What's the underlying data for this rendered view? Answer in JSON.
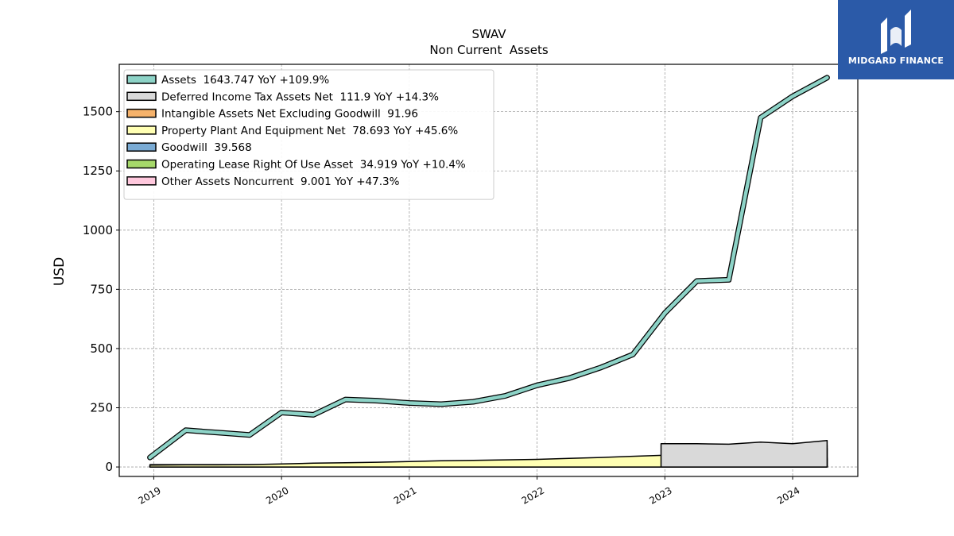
{
  "chart_data": {
    "type": "area",
    "title": "SWAV",
    "subtitle": "Non Current  Assets",
    "ylabel": "USD",
    "xlabel": "",
    "ylim": [
      -40,
      1700
    ],
    "xlim": [
      2018.73,
      2024.51
    ],
    "grid": true,
    "legend_position": "top-left",
    "yticks": [
      0,
      250,
      500,
      750,
      1000,
      1250,
      1500
    ],
    "ytick_labels": [
      "0",
      "250",
      "500",
      "750",
      "1000",
      "1250",
      "1500"
    ],
    "xticks": [
      2019,
      2020,
      2021,
      2022,
      2023,
      2024
    ],
    "xtick_labels": [
      "2019",
      "2020",
      "2021",
      "2022",
      "2023",
      "2024"
    ],
    "series": [
      {
        "name": "Other Assets Noncurrent",
        "legend": "Other Assets Noncurrent  9.001 YoY +47.3%",
        "color": "#ffc8dd",
        "x": [
          2018.97,
          2019.25,
          2019.5,
          2019.75,
          2020.0,
          2020.25,
          2020.5,
          2020.75,
          2021.0,
          2021.25,
          2021.5,
          2021.75,
          2022.0,
          2022.25,
          2022.5,
          2022.75,
          2023.0,
          2023.25,
          2023.5,
          2023.75,
          2024.0,
          2024.27
        ],
        "values": [
          3,
          3,
          2,
          2,
          3,
          3,
          3,
          3,
          3,
          3,
          3,
          3,
          3,
          3,
          3,
          4,
          5,
          5,
          6,
          7,
          8,
          9
        ]
      },
      {
        "name": "Operating Lease Right Of Use Asset",
        "legend": "Operating Lease Right Of Use Asset  34.919 YoY +10.4%",
        "color": "#a6d96a",
        "x": [
          2018.97,
          2019.25,
          2019.5,
          2019.75,
          2020.0,
          2020.25,
          2020.5,
          2020.75,
          2021.0,
          2021.25,
          2021.5,
          2021.75,
          2022.0,
          2022.25,
          2022.5,
          2022.75,
          2023.0,
          2023.25,
          2023.5,
          2023.75,
          2024.0,
          2024.27
        ],
        "values": [
          10,
          10,
          10,
          10,
          10,
          10,
          10,
          10,
          10,
          10,
          10,
          10,
          27,
          28,
          29,
          29,
          30,
          31,
          31,
          32,
          33,
          35
        ]
      },
      {
        "name": "Goodwill",
        "legend": "Goodwill  39.568",
        "color": "#7aabd4",
        "x": [
          2023.47,
          2023.75,
          2024.0,
          2024.27
        ],
        "values": [
          39.568,
          39.568,
          39.568,
          39.568
        ]
      },
      {
        "name": "Property Plant And Equipment Net",
        "legend": "Property Plant And Equipment Net  78.693 YoY +45.6%",
        "color": "#ffffb3",
        "x": [
          2018.97,
          2019.25,
          2019.5,
          2019.75,
          2020.0,
          2020.25,
          2020.5,
          2020.75,
          2021.0,
          2021.25,
          2021.5,
          2021.75,
          2022.0,
          2022.25,
          2022.5,
          2022.75,
          2023.0,
          2023.25,
          2023.5,
          2023.75,
          2024.0,
          2024.27
        ],
        "values": [
          8,
          9,
          9,
          10,
          13,
          16,
          18,
          20,
          23,
          26,
          28,
          30,
          32,
          36,
          40,
          45,
          50,
          55,
          58,
          60,
          70,
          78.693
        ]
      },
      {
        "name": "Intangible Assets Net Excluding Goodwill",
        "legend": "Intangible Assets Net Excluding Goodwill  91.96",
        "color": "#f5b26b",
        "x": [
          2023.47,
          2023.75,
          2024.0,
          2024.27
        ],
        "values": [
          91.96,
          91.96,
          91.96,
          91.96
        ]
      },
      {
        "name": "Deferred Income Tax Assets Net",
        "legend": "Deferred Income Tax Assets Net  111.9 YoY +14.3%",
        "color": "#d9d9d9",
        "x": [
          2022.97,
          2023.25,
          2023.5,
          2023.75,
          2024.0,
          2024.27
        ],
        "values": [
          98,
          98,
          96,
          105,
          98,
          111.9
        ]
      },
      {
        "name": "Assets",
        "legend": "Assets  1643.747 YoY +109.9%",
        "color": "#8dd3c7",
        "x": [
          2018.97,
          2019.25,
          2019.5,
          2019.75,
          2020.0,
          2020.25,
          2020.5,
          2020.75,
          2021.0,
          2021.25,
          2021.5,
          2021.75,
          2022.0,
          2022.25,
          2022.5,
          2022.75,
          2023.0,
          2023.25,
          2023.5,
          2023.75,
          2024.0,
          2024.27
        ],
        "values": [
          40,
          155,
          145,
          135,
          230,
          220,
          285,
          280,
          270,
          265,
          275,
          300,
          345,
          375,
          420,
          475,
          650,
          785,
          790,
          1475,
          1565,
          1643.747
        ]
      }
    ],
    "legend_order": [
      "Assets",
      "Deferred Income Tax Assets Net",
      "Intangible Assets Net Excluding Goodwill",
      "Property Plant And Equipment Net",
      "Goodwill",
      "Operating Lease Right Of Use Asset",
      "Other Assets Noncurrent"
    ]
  },
  "logo": {
    "text": "MIDGARD FINANCE",
    "bg_color": "#2b5aa8"
  }
}
